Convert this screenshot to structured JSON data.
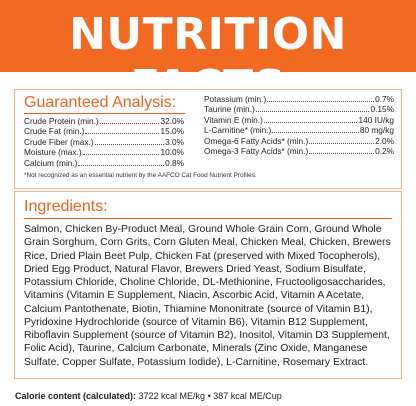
{
  "banner": {
    "title": "NUTRITION FACTS",
    "color": "#f26a21"
  },
  "guaranteed_analysis": {
    "title": "Guaranteed Analysis:",
    "left": [
      {
        "label": "Crude Protein (min.)",
        "value": "32.0%"
      },
      {
        "label": "Crude Fat (min.)",
        "value": "15.0%"
      },
      {
        "label": "Crude Fiber (max.)",
        "value": "3.0%"
      },
      {
        "label": "Moisture (max.)",
        "value": "10.0%"
      },
      {
        "label": "Calcium (min.)",
        "value": "0.8%"
      }
    ],
    "right": [
      {
        "label": "Potassium (min.)",
        "value": "0.7%"
      },
      {
        "label": "Taurine (min.)",
        "value": "0.15%"
      },
      {
        "label": "Vitamin E (min.)",
        "value": "140 IU/kg"
      },
      {
        "label": "L-Carnitine* (min.)",
        "value": "80 mg/kg"
      },
      {
        "label": "Omega-6 Fatty Acids* (min.)",
        "value": "2.0%"
      },
      {
        "label": "Omega-3 Fatty Acids* (min.)",
        "value": "0.2%"
      }
    ],
    "footnote": "*Not recognized as an essential nutrient by the AAFCO Cat Food Nutrient Profiles."
  },
  "ingredients": {
    "title": "Ingredients:",
    "text": "Salmon, Chicken By-Product Meal, Ground Whole Grain Corn, Ground Whole Grain Sorghum, Corn Grits, Corn Gluten Meal, Chicken Meal, Chicken, Brewers Rice, Dried Plain Beet Pulp, Chicken Fat (preserved with Mixed Tocopherols), Dried Egg Product, Natural Flavor, Brewers Dried Yeast, Sodium Bisulfate, Potassium Chloride, Choline Chloride, DL-Methionine, Fructooligosaccharides, Vitamins (Vitamin E Supplement, Niacin, Ascorbic Acid, Vitamin A Acetate, Calcium Pantothenate, Biotin, Thiamine Mononitrate (source of Vitamin B1), Pyridoxine Hydrochloride (source of Vitamin B6), Vitamin B12 Supplement, Riboflavin Supplement (source of Vitamin B2), Inositol, Vitamin D3 Supplement, Folic Acid), Taurine, Calcium Carbonate, Minerals (Zinc Oxide, Manganese Sulfate, Copper Sulfate, Potassium Iodide), L-Carnitine, Rosemary Extract."
  },
  "calories": {
    "label": "Calorie content (calculated):",
    "value": " 3722 kcal ME/kg • 387 kcal ME/Cup"
  }
}
